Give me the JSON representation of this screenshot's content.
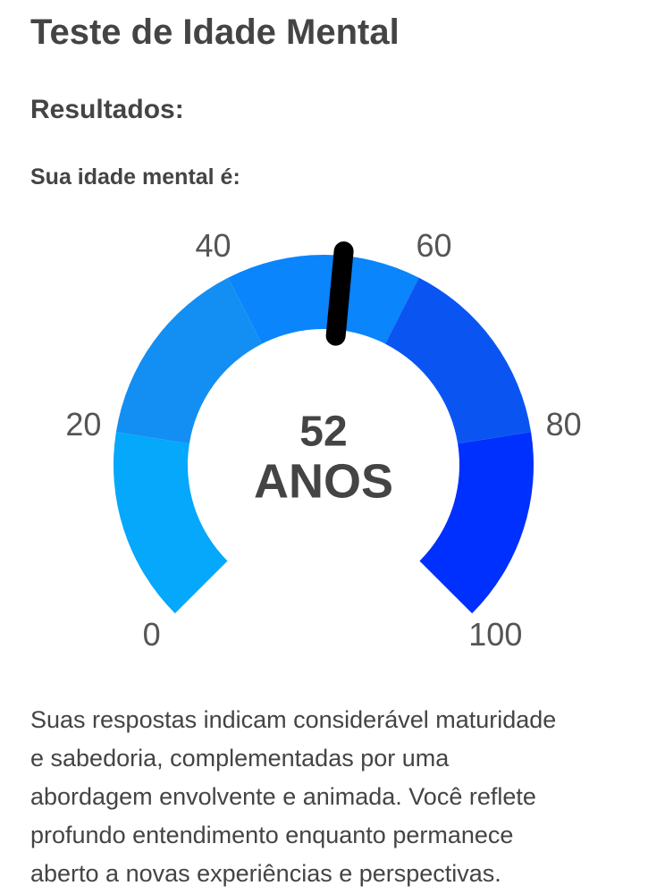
{
  "header": {
    "title": "Teste de Idade Mental",
    "subtitle": "Resultados:",
    "label": "Sua idade mental é:"
  },
  "gauge": {
    "value": 52,
    "unit": "ANOS",
    "min": 0,
    "max": 100,
    "ticks": [
      0,
      20,
      40,
      60,
      80,
      100
    ],
    "band_colors": [
      "#05a8fb",
      "#138ff3",
      "#0a85fc",
      "#0a55f2",
      "#0030fd"
    ],
    "needle_color": "#000000"
  },
  "description": {
    "lines": [
      "Suas respostas indicam considerável maturidade",
      "e sabedoria, complementadas por uma",
      "abordagem envolvente e animada. Você reflete",
      "profundo entendimento enquanto permanece",
      "aberto a novas experiências e perspectivas."
    ]
  }
}
